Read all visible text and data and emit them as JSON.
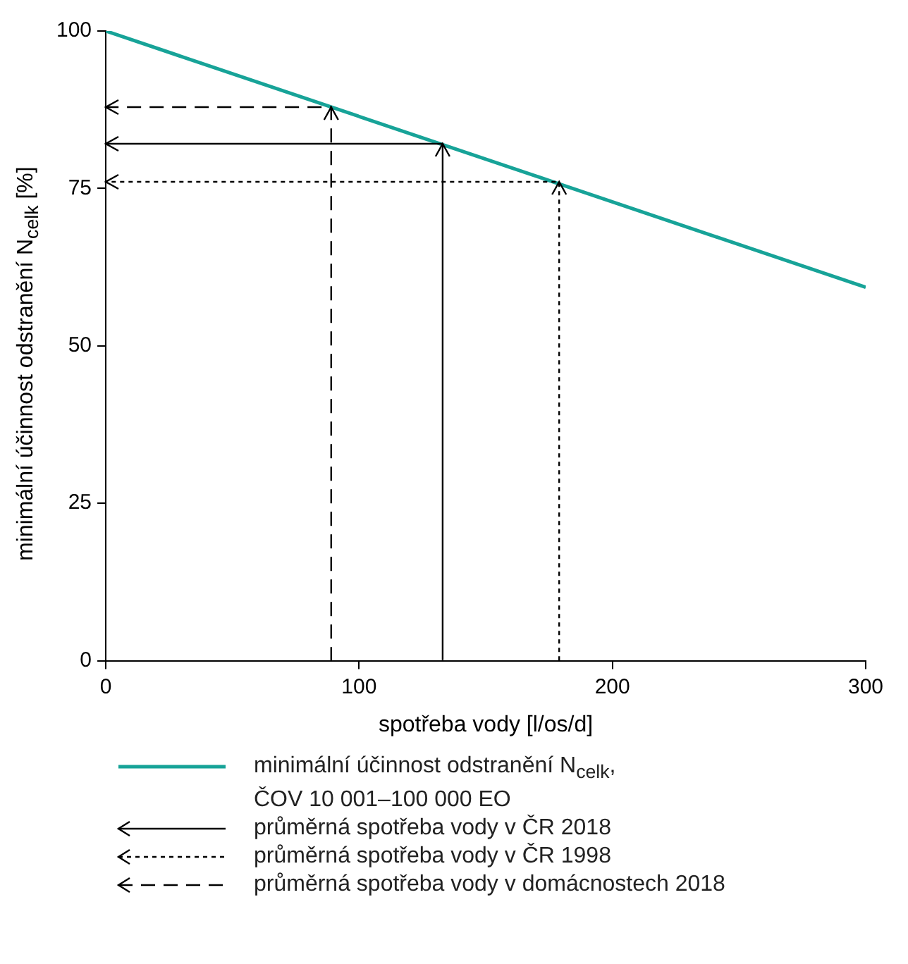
{
  "chart_data": {
    "type": "line",
    "xlabel": "spotřeba vody [l/os/d]",
    "ylabel": "minimální účinnost odstranění N$_{celk}$ [%]",
    "xlim": [
      0,
      300
    ],
    "xticks": [
      0,
      100,
      200,
      300
    ],
    "ylim": [
      0,
      100
    ],
    "yticks": [
      0,
      25,
      50,
      75,
      100
    ],
    "grid": false,
    "legend": "bottom",
    "marker": "none",
    "series": [
      {
        "name": "minimální účinnost odstranění N$_{celk}$,\nČOV 10 001–100 000 EO",
        "color": "#17a398",
        "x": [
          0,
          300
        ],
        "values": [
          100,
          59.3
        ],
        "line_style": "solid"
      },
      {
        "name": "průměrná spotřeba vody v ČR 2018",
        "color": "#000000",
        "x": [
          133,
          133,
          0
        ],
        "values": [
          0,
          82,
          82
        ],
        "line_style": "solid"
      },
      {
        "name": "průměrná spotřeba vody v ČR 1998",
        "color": "#000000",
        "x": [
          179,
          179,
          0
        ],
        "values": [
          0,
          76,
          76
        ],
        "line_style": "dotted"
      },
      {
        "name": "průměrná spotřeba vody v domácnostech 2018",
        "color": "#000000",
        "x": [
          89,
          89,
          0
        ],
        "values": [
          0,
          88,
          88
        ],
        "line_style": "dashed"
      }
    ]
  }
}
